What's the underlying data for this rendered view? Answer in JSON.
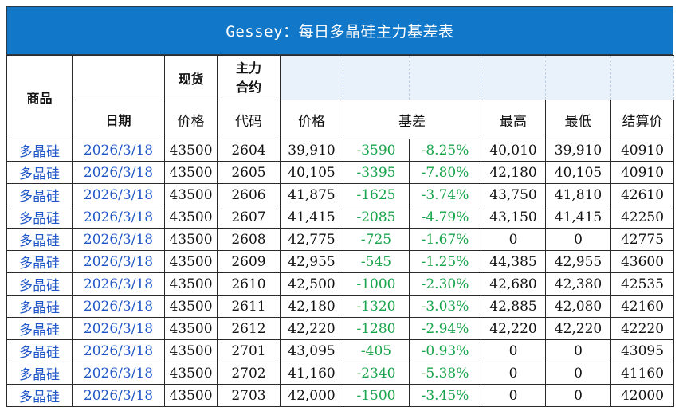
{
  "title": "Gessey：每日多晶硅主力基差表",
  "header": {
    "product": "商品",
    "date": "日期",
    "spot": "现货",
    "main_contract_line1": "主力",
    "main_contract_line2": "合约",
    "spot_price": "价格",
    "code": "代码",
    "price": "价格",
    "basis": "基差",
    "high": "最高",
    "low": "最低",
    "settle": "结算价"
  },
  "rows": [
    {
      "product": "多晶硅",
      "date": "2026/3/18",
      "spot": "43500",
      "code": "2604",
      "price": "39,910",
      "basis": "-3590",
      "basis_pct": "-8.25%",
      "high": "40,010",
      "low": "39,910",
      "settle": "40910"
    },
    {
      "product": "多晶硅",
      "date": "2026/3/18",
      "spot": "43500",
      "code": "2605",
      "price": "40,105",
      "basis": "-3395",
      "basis_pct": "-7.80%",
      "high": "42,180",
      "low": "40,105",
      "settle": "40910"
    },
    {
      "product": "多晶硅",
      "date": "2026/3/18",
      "spot": "43500",
      "code": "2606",
      "price": "41,875",
      "basis": "-1625",
      "basis_pct": "-3.74%",
      "high": "43,750",
      "low": "41,810",
      "settle": "42610"
    },
    {
      "product": "多晶硅",
      "date": "2026/3/18",
      "spot": "43500",
      "code": "2607",
      "price": "41,415",
      "basis": "-2085",
      "basis_pct": "-4.79%",
      "high": "43,150",
      "low": "41,415",
      "settle": "42250"
    },
    {
      "product": "多晶硅",
      "date": "2026/3/18",
      "spot": "43500",
      "code": "2608",
      "price": "42,775",
      "basis": "-725",
      "basis_pct": "-1.67%",
      "high": "0",
      "low": "0",
      "settle": "42775"
    },
    {
      "product": "多晶硅",
      "date": "2026/3/18",
      "spot": "43500",
      "code": "2609",
      "price": "42,955",
      "basis": "-545",
      "basis_pct": "-1.25%",
      "high": "44,385",
      "low": "42,955",
      "settle": "43600"
    },
    {
      "product": "多晶硅",
      "date": "2026/3/18",
      "spot": "43500",
      "code": "2610",
      "price": "42,500",
      "basis": "-1000",
      "basis_pct": "-2.30%",
      "high": "42,680",
      "low": "42,380",
      "settle": "42535"
    },
    {
      "product": "多晶硅",
      "date": "2026/3/18",
      "spot": "43500",
      "code": "2611",
      "price": "42,180",
      "basis": "-1320",
      "basis_pct": "-3.03%",
      "high": "42,885",
      "low": "42,080",
      "settle": "42160"
    },
    {
      "product": "多晶硅",
      "date": "2026/3/18",
      "spot": "43500",
      "code": "2612",
      "price": "42,220",
      "basis": "-1280",
      "basis_pct": "-2.94%",
      "high": "42,220",
      "low": "42,220",
      "settle": "42220"
    },
    {
      "product": "多晶硅",
      "date": "2026/3/18",
      "spot": "43500",
      "code": "2701",
      "price": "43,095",
      "basis": "-405",
      "basis_pct": "-0.93%",
      "high": "0",
      "low": "0",
      "settle": "43095"
    },
    {
      "product": "多晶硅",
      "date": "2026/3/18",
      "spot": "43500",
      "code": "2702",
      "price": "41,160",
      "basis": "-2340",
      "basis_pct": "-5.38%",
      "high": "0",
      "low": "0",
      "settle": "41160"
    },
    {
      "product": "多晶硅",
      "date": "2026/3/18",
      "spot": "43500",
      "code": "2703",
      "price": "42,000",
      "basis": "-1500",
      "basis_pct": "-3.45%",
      "high": "0",
      "low": "0",
      "settle": "42000"
    }
  ],
  "colors": {
    "title_bg": "#1177c8",
    "link_blue": "#1f56c8",
    "basis_green": "#18a44a",
    "hint_fill": "#e9f1fb"
  }
}
